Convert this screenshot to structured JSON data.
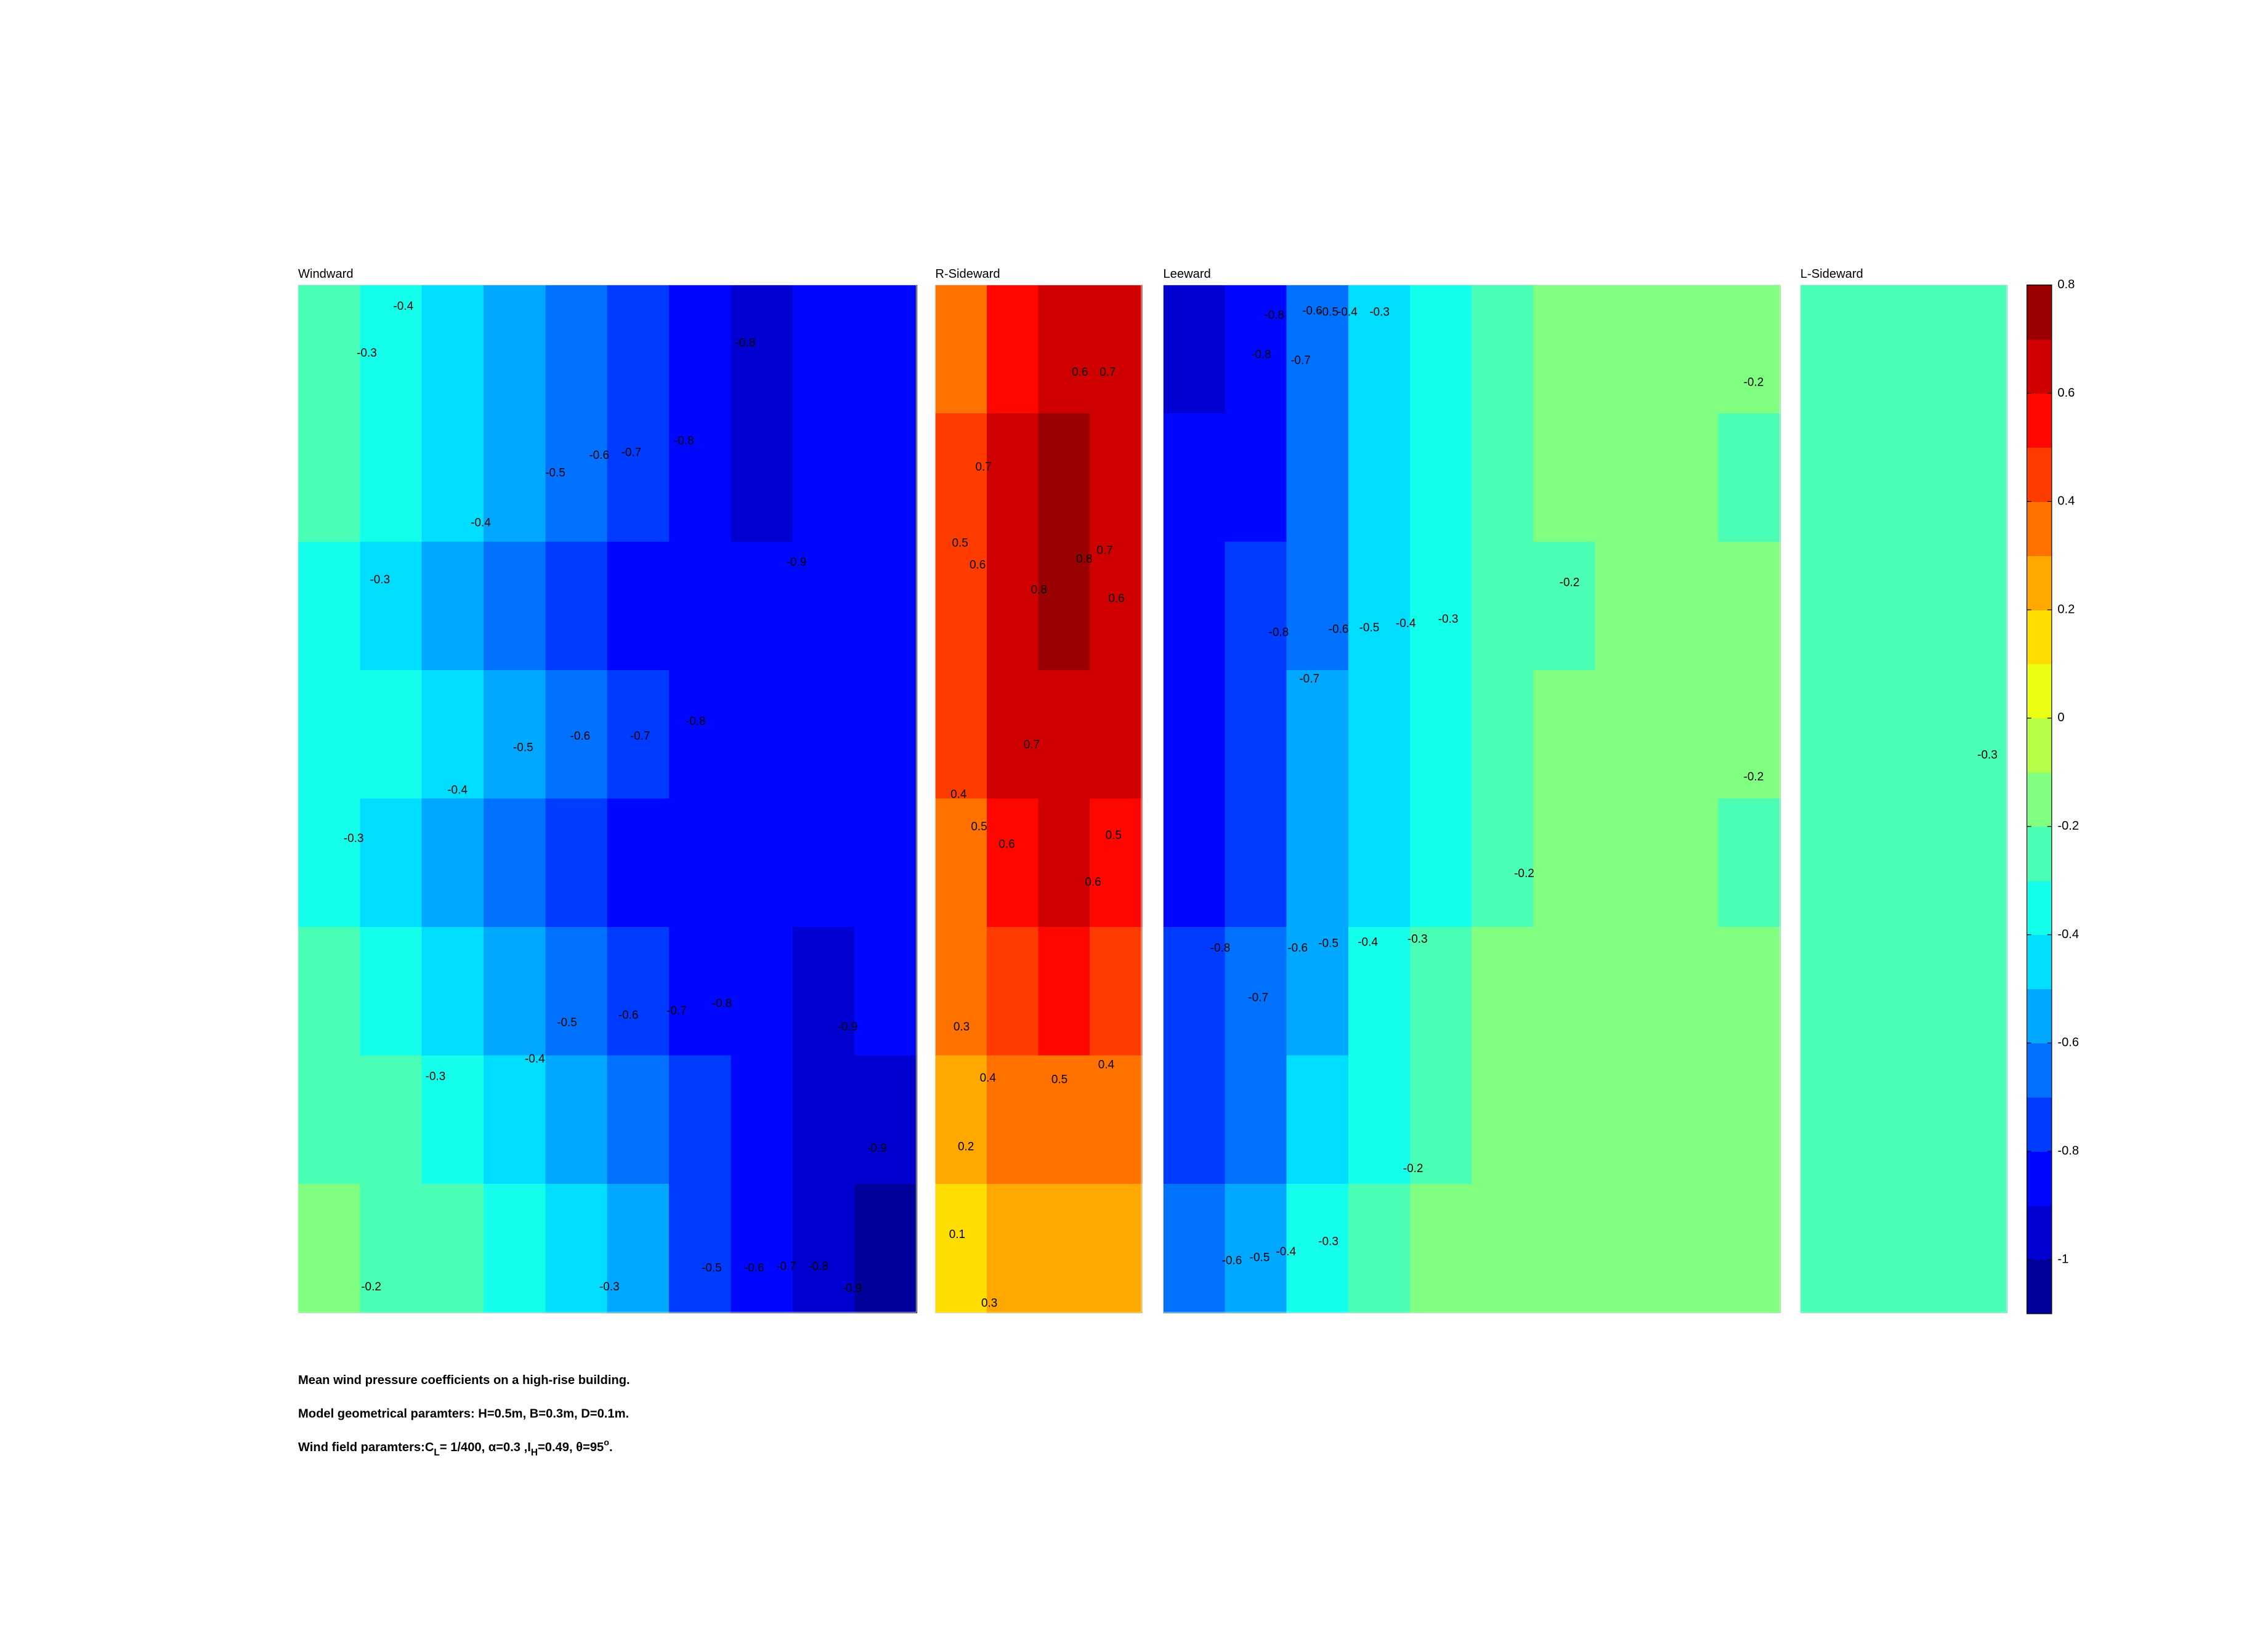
{
  "chart_data": [
    {
      "type": "contour",
      "title": "Windward",
      "z": [
        [
          -0.25,
          -0.35,
          -0.45,
          -0.55,
          -0.65,
          -0.75,
          -0.85,
          -0.95,
          -0.85,
          -0.85
        ],
        [
          -0.25,
          -0.35,
          -0.45,
          -0.55,
          -0.65,
          -0.75,
          -0.85,
          -0.95,
          -0.85,
          -0.85
        ],
        [
          -0.35,
          -0.45,
          -0.55,
          -0.65,
          -0.75,
          -0.85,
          -0.85,
          -0.85,
          -0.85,
          -0.85
        ],
        [
          -0.35,
          -0.35,
          -0.45,
          -0.55,
          -0.65,
          -0.75,
          -0.85,
          -0.85,
          -0.85,
          -0.85
        ],
        [
          -0.35,
          -0.45,
          -0.55,
          -0.65,
          -0.75,
          -0.85,
          -0.85,
          -0.85,
          -0.85,
          -0.85
        ],
        [
          -0.25,
          -0.35,
          -0.45,
          -0.55,
          -0.65,
          -0.75,
          -0.85,
          -0.85,
          -0.95,
          -0.85
        ],
        [
          -0.25,
          -0.25,
          -0.35,
          -0.45,
          -0.55,
          -0.65,
          -0.75,
          -0.85,
          -0.95,
          -0.95
        ],
        [
          -0.15,
          -0.25,
          -0.25,
          -0.35,
          -0.45,
          -0.55,
          -0.75,
          -0.85,
          -0.95,
          -1.05
        ]
      ],
      "contour_labels": [
        -0.4,
        -0.3,
        -0.8,
        -0.5,
        -0.6,
        -0.7,
        -0.8,
        -0.4,
        -0.9,
        -0.3,
        -0.5,
        -0.6,
        -0.7,
        -0.8,
        -0.4,
        -0.3,
        -0.5,
        -0.6,
        -0.7,
        -0.8,
        -0.9,
        -0.4,
        -0.3,
        -0.9,
        -0.2,
        -0.3,
        -0.5,
        -0.6,
        -0.7,
        -0.8,
        -0.9
      ]
    },
    {
      "type": "contour",
      "title": "R-Sideward",
      "z": [
        [
          0.35,
          0.55,
          0.65,
          0.65
        ],
        [
          0.45,
          0.65,
          0.75,
          0.65
        ],
        [
          0.45,
          0.65,
          0.75,
          0.65
        ],
        [
          0.45,
          0.65,
          0.65,
          0.65
        ],
        [
          0.35,
          0.55,
          0.65,
          0.55
        ],
        [
          0.35,
          0.45,
          0.55,
          0.45
        ],
        [
          0.25,
          0.35,
          0.35,
          0.35
        ],
        [
          0.15,
          0.25,
          0.25,
          0.25
        ]
      ],
      "contour_labels": [
        0.6,
        0.7,
        0.7,
        0.5,
        0.6,
        0.8,
        0.7,
        0.8,
        0.6,
        0.7,
        0.4,
        0.5,
        0.6,
        0.5,
        0.6,
        0.3,
        0.4,
        0.5,
        0.4,
        0.2,
        0.1,
        0.3
      ]
    },
    {
      "type": "contour",
      "title": "Leeward",
      "z": [
        [
          -0.95,
          -0.85,
          -0.65,
          -0.45,
          -0.35,
          -0.25,
          -0.15,
          -0.15,
          -0.15,
          -0.15
        ],
        [
          -0.85,
          -0.85,
          -0.65,
          -0.45,
          -0.35,
          -0.25,
          -0.15,
          -0.15,
          -0.15,
          -0.25
        ],
        [
          -0.85,
          -0.75,
          -0.65,
          -0.45,
          -0.35,
          -0.25,
          -0.25,
          -0.15,
          -0.15,
          -0.15
        ],
        [
          -0.85,
          -0.75,
          -0.55,
          -0.45,
          -0.35,
          -0.25,
          -0.15,
          -0.15,
          -0.15,
          -0.15
        ],
        [
          -0.85,
          -0.75,
          -0.55,
          -0.45,
          -0.35,
          -0.25,
          -0.15,
          -0.15,
          -0.15,
          -0.25
        ],
        [
          -0.75,
          -0.65,
          -0.55,
          -0.35,
          -0.25,
          -0.15,
          -0.15,
          -0.15,
          -0.15,
          -0.15
        ],
        [
          -0.75,
          -0.65,
          -0.45,
          -0.35,
          -0.25,
          -0.15,
          -0.15,
          -0.15,
          -0.15,
          -0.15
        ],
        [
          -0.65,
          -0.55,
          -0.35,
          -0.25,
          -0.15,
          -0.15,
          -0.15,
          -0.15,
          -0.15,
          -0.15
        ]
      ],
      "contour_labels": [
        -0.8,
        -0.6,
        -0.5,
        -0.4,
        -0.3,
        -0.8,
        -0.7,
        -0.2,
        -0.2,
        -0.8,
        -0.6,
        -0.5,
        -0.4,
        -0.3,
        -0.7,
        -0.2,
        -0.2,
        -0.8,
        -0.6,
        -0.5,
        -0.4,
        -0.3,
        -0.7,
        -0.2,
        -0.6,
        -0.5,
        -0.4,
        -0.3
      ]
    },
    {
      "type": "contour",
      "title": "L-Sideward",
      "z": [
        [
          -0.25,
          -0.25,
          -0.25,
          -0.25
        ],
        [
          -0.25,
          -0.25,
          -0.25,
          -0.25
        ]
      ],
      "contour_labels": [
        -0.3
      ]
    },
    {
      "type": "colorbar",
      "levels": [
        -1.1,
        -1.0,
        -0.9,
        -0.8,
        -0.7,
        -0.6,
        -0.5,
        -0.4,
        -0.3,
        -0.2,
        -0.1,
        0,
        0.1,
        0.2,
        0.3,
        0.4,
        0.5,
        0.6,
        0.7,
        0.8
      ],
      "ylim": [
        -1.1,
        0.8
      ],
      "yticks": [
        0.8,
        0.6,
        0.4,
        0.2,
        0,
        -0.2,
        -0.4,
        -0.6,
        -0.8,
        -1
      ]
    }
  ],
  "caption": {
    "line1": "Mean wind pressure coefficients on a high-rise building.",
    "line2": "Model geometrical paramters: H=0.5m, B=0.3m, D=0.1m.",
    "line3": [
      "Wind field paramters:C",
      "L",
      "= 1/400, α=0.3 ,I",
      "H",
      "=0.49, θ=95",
      "o",
      "."
    ]
  }
}
